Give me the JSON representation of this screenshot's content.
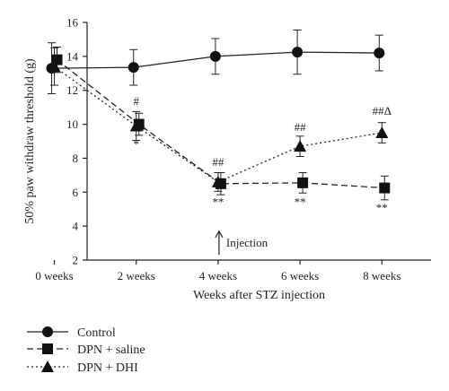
{
  "chart_data": {
    "type": "line",
    "xlabel": "Weeks after STZ injection",
    "ylabel": "50% paw withdraw threshold (g)",
    "ylim": [
      2,
      16
    ],
    "yticks": [
      2,
      4,
      6,
      8,
      10,
      12,
      14,
      16
    ],
    "categories": [
      "0 weeks",
      "2 weeks",
      "4 weeks",
      "6 weeks",
      "8 weeks"
    ],
    "grid": false,
    "legend_position": "bottom-left",
    "series": [
      {
        "name": "Control",
        "marker": "circle",
        "line": "solid",
        "values": [
          13.3,
          13.35,
          14.0,
          14.25,
          14.2
        ],
        "errors": [
          1.5,
          1.05,
          1.05,
          1.3,
          1.05
        ]
      },
      {
        "name": "DPN + saline",
        "marker": "square",
        "line": "dashed",
        "values": [
          13.8,
          10.0,
          6.5,
          6.55,
          6.25
        ],
        "errors": [
          0.75,
          0.65,
          0.65,
          0.6,
          0.7
        ]
      },
      {
        "name": "DPN + DHI",
        "marker": "triangle",
        "line": "dotted",
        "values": [
          13.4,
          9.9,
          6.6,
          8.7,
          9.5
        ],
        "errors": [
          1.1,
          0.85,
          0.55,
          0.6,
          0.6
        ]
      }
    ],
    "annotations": [
      {
        "text": "#",
        "category_index": 1,
        "y": 11.15
      },
      {
        "text": "*",
        "category_index": 1,
        "y": 8.6
      },
      {
        "text": "##",
        "category_index": 2,
        "y": 7.55
      },
      {
        "text": "**",
        "category_index": 2,
        "y": 5.2
      },
      {
        "text": "##",
        "category_index": 3,
        "y": 9.6
      },
      {
        "text": "**",
        "category_index": 3,
        "y": 5.2
      },
      {
        "text": "##Δ",
        "category_index": 4,
        "y": 10.55
      },
      {
        "text": "**",
        "category_index": 4,
        "y": 4.85
      }
    ],
    "injection_label": "Injection"
  }
}
